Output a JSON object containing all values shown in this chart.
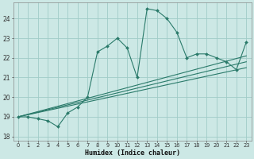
{
  "xlabel": "Humidex (Indice chaleur)",
  "background_color": "#cce8e5",
  "grid_color": "#a0ccc8",
  "line_color": "#2a7a6a",
  "xlim": [
    -0.5,
    23.5
  ],
  "ylim": [
    17.8,
    24.8
  ],
  "yticks": [
    18,
    19,
    20,
    21,
    22,
    23,
    24
  ],
  "xtick_labels": [
    "0",
    "1",
    "2",
    "3",
    "4",
    "5",
    "6",
    "7",
    "8",
    "9",
    "10",
    "11",
    "12",
    "13",
    "14",
    "15",
    "16",
    "17",
    "18",
    "19",
    "20",
    "21",
    "22",
    "23"
  ],
  "main_series_x": [
    0,
    1,
    2,
    3,
    4,
    5,
    6,
    7,
    8,
    9,
    10,
    11,
    12,
    13,
    14,
    15,
    16,
    17,
    18,
    19,
    20,
    21,
    22,
    23
  ],
  "main_series_y": [
    19.0,
    19.0,
    18.9,
    18.8,
    18.5,
    19.2,
    19.5,
    20.0,
    22.3,
    22.6,
    23.0,
    22.5,
    21.0,
    24.5,
    24.4,
    24.0,
    23.3,
    22.0,
    22.2,
    22.2,
    22.0,
    21.8,
    21.4,
    22.8
  ],
  "linear_series": [
    {
      "x": [
        0,
        23
      ],
      "y": [
        19.0,
        21.5
      ]
    },
    {
      "x": [
        0,
        23
      ],
      "y": [
        19.0,
        21.8
      ]
    },
    {
      "x": [
        0,
        23
      ],
      "y": [
        19.0,
        22.1
      ]
    }
  ]
}
